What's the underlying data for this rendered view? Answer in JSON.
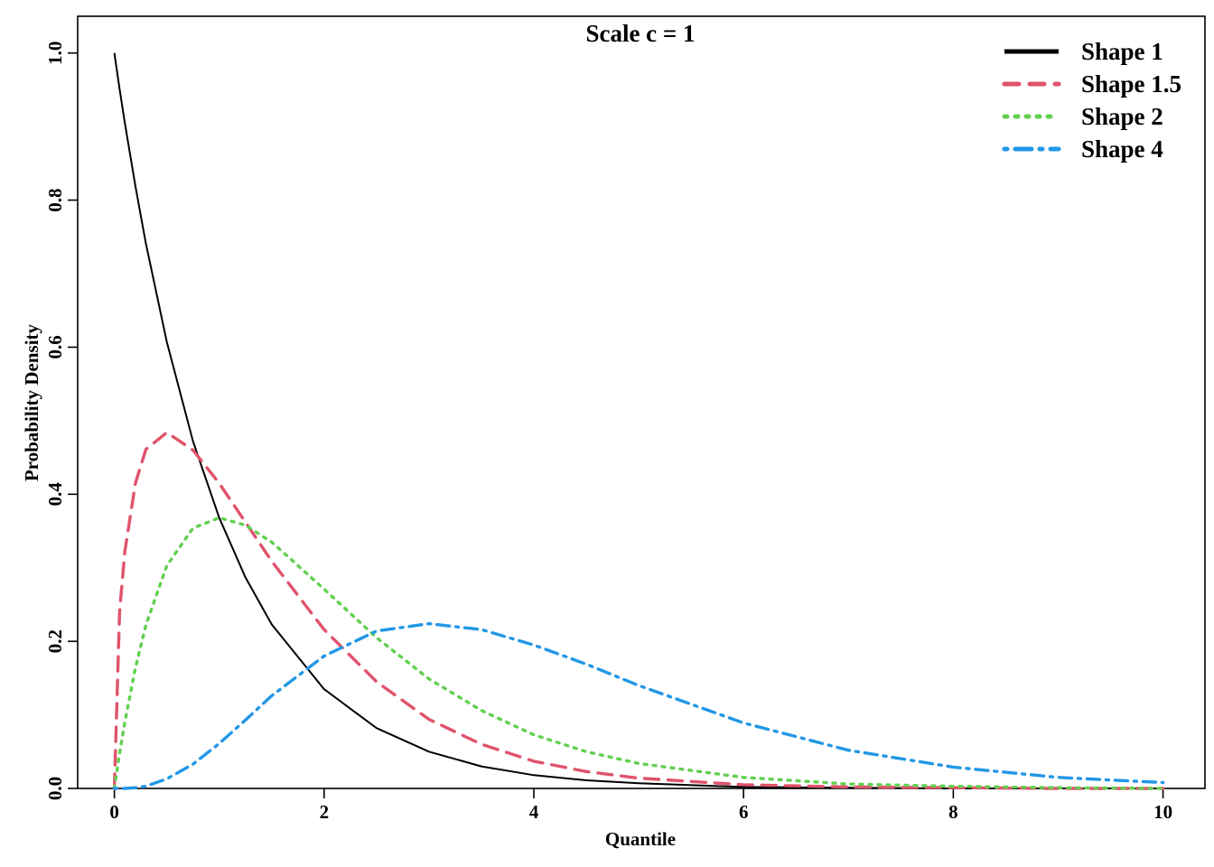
{
  "chart_data": {
    "type": "line",
    "title": "Scale c = 1",
    "xlabel": "Quantile",
    "ylabel": "Probability Density",
    "xlim": [
      -0.35,
      10.4
    ],
    "ylim": [
      0,
      1.05
    ],
    "xticks": [
      0,
      2,
      4,
      6,
      8,
      10
    ],
    "xtick_labels": [
      "0",
      "2",
      "4",
      "6",
      "8",
      "10"
    ],
    "yticks": [
      0,
      0.2,
      0.4,
      0.6,
      0.8,
      1.0
    ],
    "ytick_labels": [
      "0.0",
      "0.2",
      "0.4",
      "0.6",
      "0.8",
      "1.0"
    ],
    "grid": false,
    "legend_position": "top-right",
    "x": [
      0,
      0.05,
      0.1,
      0.2,
      0.3,
      0.5,
      0.75,
      1,
      1.25,
      1.5,
      2,
      2.5,
      3,
      3.5,
      4,
      4.5,
      5,
      6,
      7,
      8,
      9,
      10
    ],
    "series": [
      {
        "name": "Shape 1",
        "color": "#000000",
        "dash": "solid",
        "values": [
          1.0,
          0.951,
          0.905,
          0.819,
          0.741,
          0.607,
          0.472,
          0.368,
          0.287,
          0.223,
          0.135,
          0.082,
          0.05,
          0.03,
          0.018,
          0.011,
          0.007,
          0.002,
          0.001,
          0.0,
          0.0,
          0.0
        ]
      },
      {
        "name": "Shape 1.5",
        "color": "#DF536B",
        "dash": "dashed",
        "values": [
          0.0,
          0.24,
          0.322,
          0.415,
          0.461,
          0.484,
          0.46,
          0.415,
          0.362,
          0.309,
          0.216,
          0.145,
          0.094,
          0.06,
          0.037,
          0.023,
          0.014,
          0.005,
          0.002,
          0.001,
          0.0,
          0.0
        ]
      },
      {
        "name": "Shape 2",
        "color": "#61D04F",
        "dash": "dotted",
        "values": [
          0.0,
          0.048,
          0.09,
          0.164,
          0.222,
          0.303,
          0.354,
          0.368,
          0.358,
          0.335,
          0.271,
          0.205,
          0.149,
          0.106,
          0.073,
          0.05,
          0.034,
          0.015,
          0.006,
          0.003,
          0.001,
          0.0
        ]
      },
      {
        "name": "Shape 4",
        "color": "#2297E6",
        "dash": "dashdot",
        "values": [
          0.0,
          0.0,
          0.0,
          0.001,
          0.003,
          0.013,
          0.033,
          0.061,
          0.093,
          0.126,
          0.18,
          0.214,
          0.224,
          0.216,
          0.195,
          0.169,
          0.14,
          0.089,
          0.052,
          0.029,
          0.015,
          0.008
        ]
      }
    ]
  }
}
